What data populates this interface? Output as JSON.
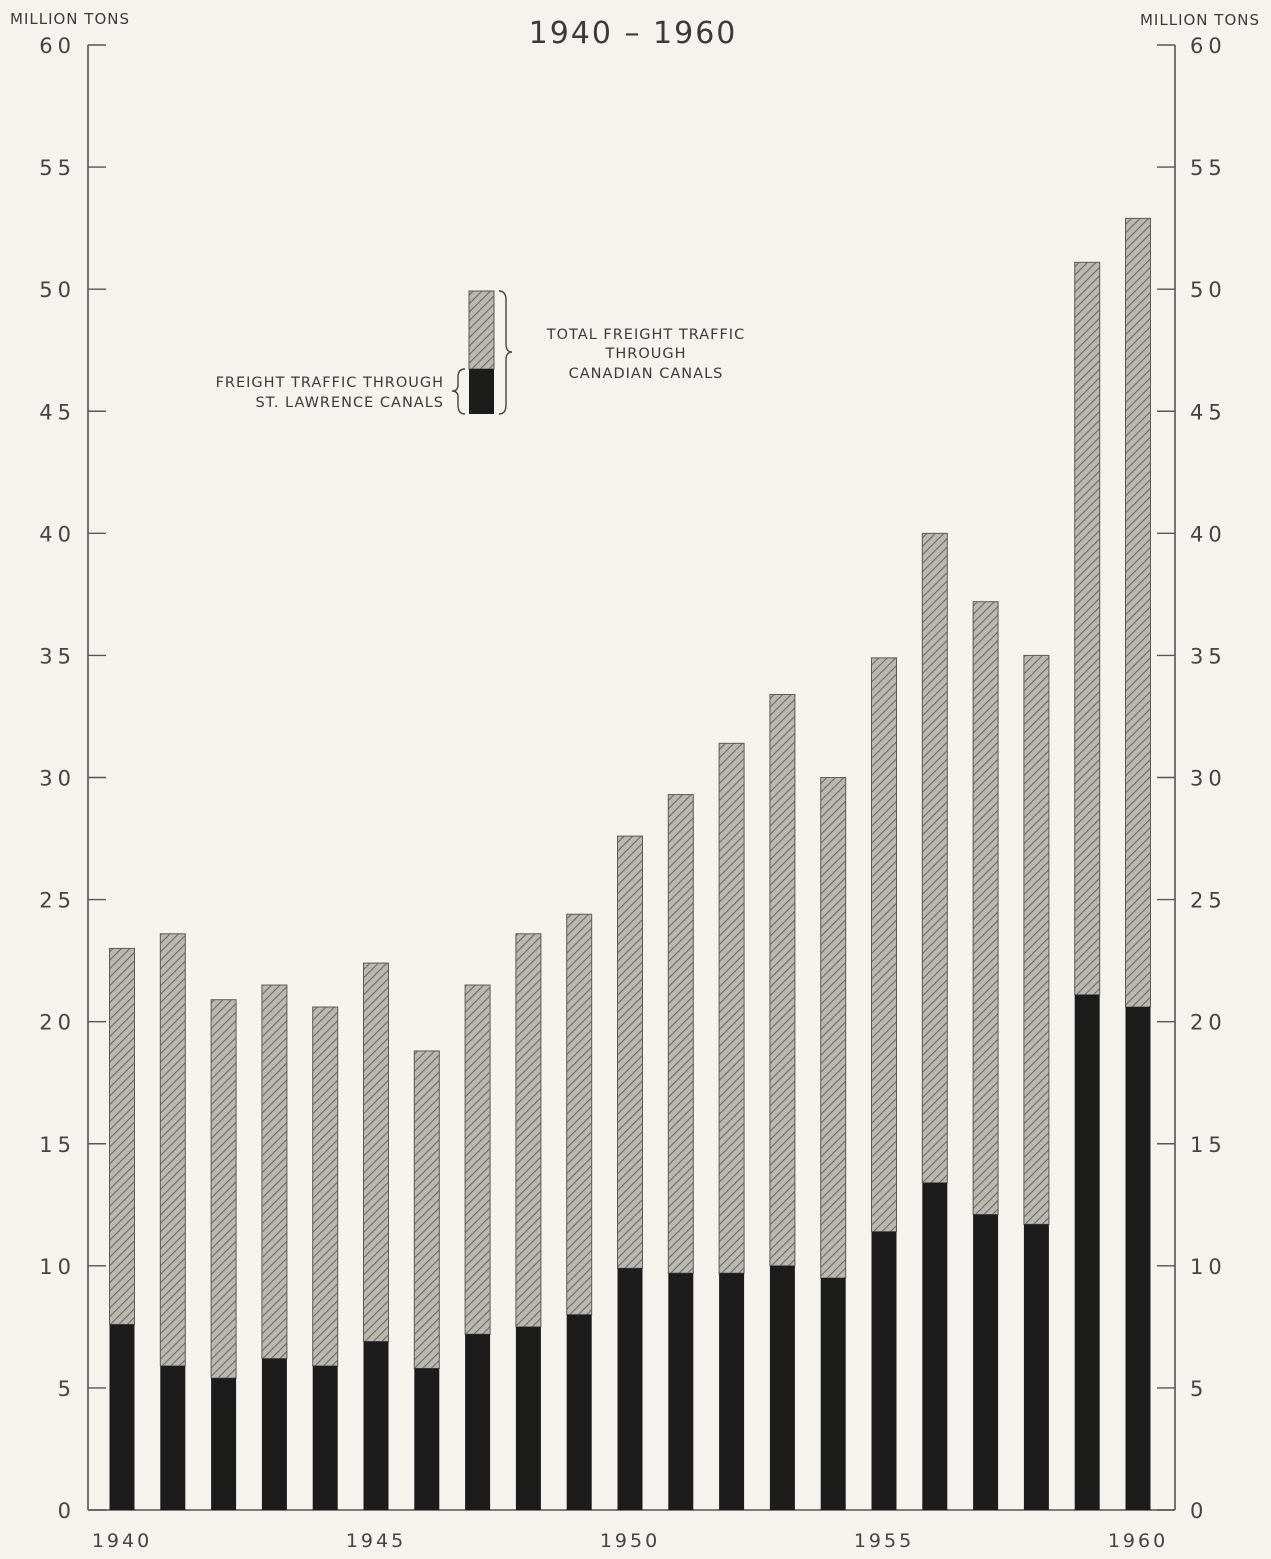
{
  "chart_data": {
    "type": "bar",
    "title": "1940 – 1960",
    "ylabel_left": "MILLION TONS",
    "ylabel_right": "MILLION TONS",
    "ylim": [
      0,
      60
    ],
    "yticks": [
      0,
      5,
      10,
      15,
      20,
      25,
      30,
      35,
      40,
      45,
      50,
      55,
      60
    ],
    "xtick_labels": [
      "1940",
      "1945",
      "1950",
      "1955",
      "1960"
    ],
    "categories": [
      "1940",
      "1941",
      "1942",
      "1943",
      "1944",
      "1945",
      "1946",
      "1947",
      "1948",
      "1949",
      "1950",
      "1951",
      "1952",
      "1953",
      "1954",
      "1955",
      "1956",
      "1957",
      "1958",
      "1959",
      "1960"
    ],
    "series": [
      {
        "name": "FREIGHT TRAFFIC THROUGH ST. LAWRENCE CANALS",
        "values": [
          7.6,
          5.9,
          5.4,
          6.2,
          5.9,
          6.9,
          5.8,
          7.2,
          7.5,
          8.0,
          9.9,
          9.7,
          9.7,
          10.0,
          9.5,
          11.4,
          13.4,
          12.1,
          11.7,
          21.1,
          20.6
        ],
        "color": "#1c1c1c"
      },
      {
        "name": "TOTAL FREIGHT TRAFFIC THROUGH CANADIAN CANALS",
        "values": [
          23.0,
          23.6,
          20.9,
          21.5,
          20.6,
          22.4,
          18.8,
          21.5,
          23.6,
          24.4,
          27.6,
          29.3,
          31.4,
          33.4,
          30.0,
          34.9,
          40.0,
          37.2,
          35.0,
          51.1,
          52.9
        ],
        "color": "#8c8c8c"
      }
    ],
    "legend": {
      "placement": "upper-center",
      "total_label_lines": [
        "TOTAL FREIGHT TRAFFIC",
        "THROUGH",
        "CANADIAN CANALS"
      ],
      "stlawrence_label_lines": [
        "FREIGHT TRAFFIC THROUGH",
        "ST. LAWRENCE CANALS"
      ]
    },
    "grid": false
  }
}
